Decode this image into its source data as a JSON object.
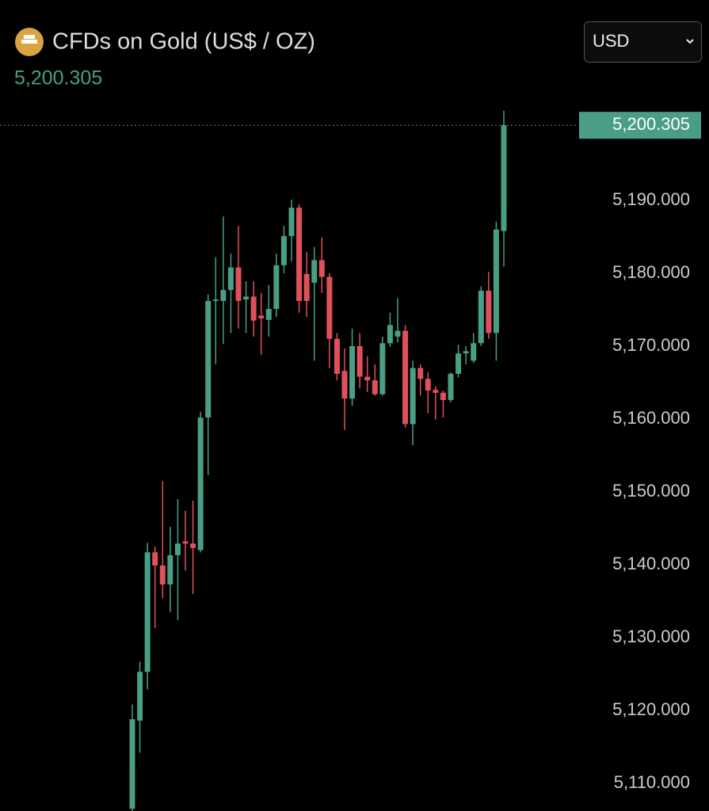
{
  "header": {
    "title": "CFDs on Gold (US$ / OZ)",
    "currency": "USD"
  },
  "chart_data": {
    "type": "candlestick",
    "current_price": {
      "value": 5200.305,
      "label": "5,200.305"
    },
    "up_color": "#4a9e85",
    "down_color": "#e0505a",
    "open": [
      5106.5,
      5118.6,
      5125.3,
      5141.7,
      5139.9,
      5137.3,
      5141.3,
      5143.2,
      5142.9,
      5142,
      5160.2,
      5176.2,
      5176.2,
      5177.7,
      5180.8,
      5176.4,
      5176.8,
      5174.2,
      5173.6,
      5175.1,
      5181.1,
      5185.1,
      5189,
      5179.9,
      5178.7,
      5181.8,
      5179.5,
      5171,
      5166.6,
      5162.8,
      5170,
      5165.8,
      5165.3,
      5163.4,
      5170.4,
      5171.3,
      5172.1,
      5159.3,
      5167,
      5165.5,
      5164,
      5163.6,
      5162.6,
      5166.2,
      5169,
      5168,
      5170.4,
      5177.6,
      5171.8,
      5185.8
    ],
    "high": [
      5120.8,
      5126.7,
      5143,
      5142.5,
      5151.5,
      5145.2,
      5149,
      5147.4,
      5148.8,
      5161,
      5177.1,
      5182.2,
      5187.8,
      5182.7,
      5186.5,
      5178.9,
      5178.9,
      5177.3,
      5178.4,
      5182.7,
      5186.5,
      5190.1,
      5189.5,
      5182.9,
      5183.6,
      5184.9,
      5180,
      5171.8,
      5169.7,
      5172.4,
      5171.8,
      5168.6,
      5167.5,
      5171.3,
      5174.6,
      5176.6,
      5172.9,
      5168,
      5167.5,
      5166.4,
      5164.5,
      5163.9,
      5166.4,
      5170.2,
      5170,
      5171.8,
      5178.2,
      5180.2,
      5187.1,
      5202.3
    ],
    "low": [
      5106.2,
      5114.2,
      5122.9,
      5131.3,
      5135.4,
      5133.5,
      5132.4,
      5139.2,
      5136,
      5141.7,
      5152.3,
      5167.5,
      5170.3,
      5171.8,
      5172.4,
      5171.8,
      5171.3,
      5168.8,
      5171.3,
      5174,
      5180,
      5181.6,
      5174.6,
      5174,
      5168,
      5177.3,
      5167,
      5165.3,
      5158.5,
      5161.8,
      5164.2,
      5163.7,
      5163.2,
      5163.2,
      5169.9,
      5170.5,
      5158.8,
      5156.4,
      5163.2,
      5160.8,
      5159.9,
      5160.2,
      5162.3,
      5165.7,
      5167.5,
      5167.7,
      5170,
      5171,
      5168,
      5180.9
    ],
    "close": [
      5118.8,
      5125.3,
      5141.7,
      5139.9,
      5137.3,
      5141.3,
      5142.9,
      5142.9,
      5142.3,
      5160.2,
      5176.2,
      5176.4,
      5177.7,
      5180.8,
      5176.2,
      5176.8,
      5173.5,
      5173.8,
      5175.1,
      5181.1,
      5185.1,
      5189,
      5176.2,
      5176.2,
      5181.8,
      5179.5,
      5171,
      5166.2,
      5162.8,
      5170,
      5165.8,
      5165.3,
      5163.4,
      5170.4,
      5172.9,
      5172.1,
      5159.3,
      5167,
      5165.5,
      5163.9,
      5163.6,
      5162.6,
      5166.2,
      5169,
      5169.3,
      5170.4,
      5177.6,
      5171.8,
      5186,
      5200.305
    ],
    "ylim": [
      5106.2,
      5217.5
    ],
    "yticks": [
      {
        "value": 5110,
        "label": "5,110.000"
      },
      {
        "value": 5120,
        "label": "5,120.000"
      },
      {
        "value": 5130,
        "label": "5,130.000"
      },
      {
        "value": 5140,
        "label": "5,140.000"
      },
      {
        "value": 5150,
        "label": "5,150.000"
      },
      {
        "value": 5160,
        "label": "5,160.000"
      },
      {
        "value": 5170,
        "label": "5,170.000"
      },
      {
        "value": 5180,
        "label": "5,180.000"
      },
      {
        "value": 5190,
        "label": "5,190.000"
      }
    ]
  }
}
